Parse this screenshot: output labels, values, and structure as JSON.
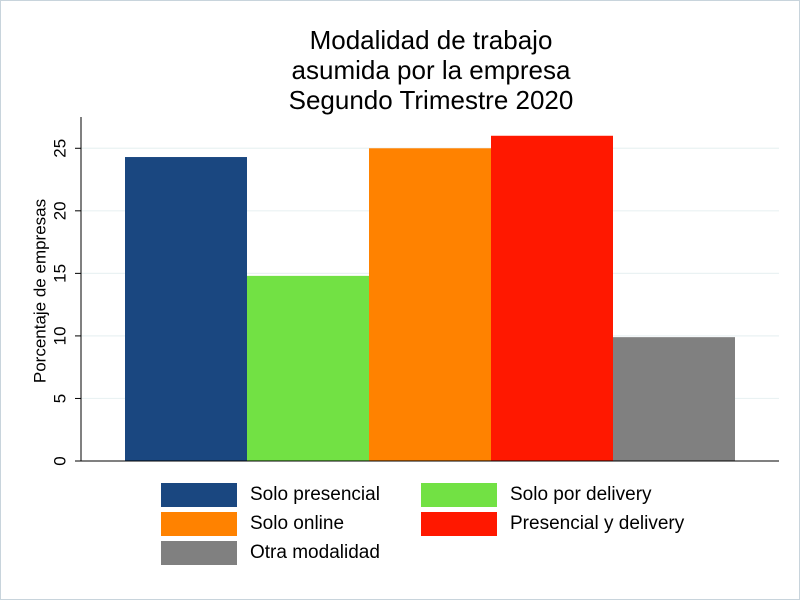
{
  "chart_data": {
    "type": "bar",
    "title_lines": [
      "Modalidad de trabajo",
      "asumida por la empresa",
      "Segundo Trimestre 2020"
    ],
    "xlabel": "",
    "ylabel": "Porcentaje de empresas",
    "ylim": [
      0,
      27.5
    ],
    "yticks": [
      0,
      5,
      10,
      15,
      20,
      25
    ],
    "grid": true,
    "legend_position": "bottom",
    "series": [
      {
        "name": "Solo presencial",
        "value": 24.3,
        "color": "#1a4780"
      },
      {
        "name": "Solo por delivery",
        "value": 14.8,
        "color": "#72e144"
      },
      {
        "name": "Solo online",
        "value": 25.0,
        "color": "#ff8200"
      },
      {
        "name": "Presencial y delivery",
        "value": 26.0,
        "color": "#ff1800"
      },
      {
        "name": "Otra modalidad",
        "value": 9.9,
        "color": "#808080"
      }
    ]
  }
}
